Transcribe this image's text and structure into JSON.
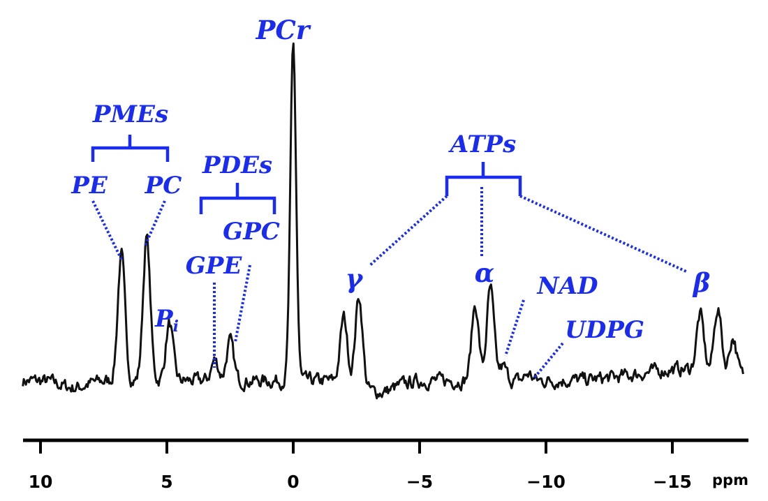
{
  "chart_data": {
    "type": "line",
    "x_unit": "ppm",
    "x_reversed": true,
    "xlim": [
      10.7,
      -17.8
    ],
    "x_ticks": [
      10,
      5,
      0,
      -5,
      -10,
      -15
    ],
    "x_tick_labels": [
      "10",
      "5",
      "0",
      "−5",
      "−10",
      "−15"
    ],
    "y_axis_shown": false,
    "grid": false,
    "baseline": 0.8,
    "noise_amplitude": 0.3,
    "peaks": [
      {
        "label": "PE",
        "ppm": 6.8,
        "height": 5.5
      },
      {
        "label": "PC",
        "ppm": 5.8,
        "height": 6.2
      },
      {
        "label": "Pi",
        "ppm": 4.9,
        "height": 2.5
      },
      {
        "label": "GPE",
        "ppm": 3.1,
        "height": 0.9
      },
      {
        "label": "GPC",
        "ppm": 2.5,
        "height": 1.7
      },
      {
        "label": "PCr",
        "ppm": 0.0,
        "height": 14.5
      },
      {
        "label": "γ",
        "ppm": -2.0,
        "height": 2.8
      },
      {
        "label": "γ",
        "ppm": -2.6,
        "height": 3.9
      },
      {
        "label": "α",
        "ppm": -7.2,
        "height": 3.3
      },
      {
        "label": "α",
        "ppm": -7.8,
        "height": 4.0
      },
      {
        "label": "NAD",
        "ppm": -8.3,
        "height": 0.6
      },
      {
        "label": "UDPG",
        "ppm": -9.3,
        "height": 0.3
      },
      {
        "label": "β",
        "ppm": -16.1,
        "height": 2.4
      },
      {
        "label": "β",
        "ppm": -16.8,
        "height": 2.8
      },
      {
        "label": "β",
        "ppm": -17.4,
        "height": 1.6
      }
    ],
    "annotations": {
      "PCr": "PCr",
      "PMEs": "PMEs",
      "PE": "PE",
      "PC": "PC",
      "Pi_main": "P",
      "Pi_sub": "i",
      "PDEs": "PDEs",
      "GPE": "GPE",
      "GPC": "GPC",
      "ATPs": "ATPs",
      "gamma": "γ",
      "alpha": "α",
      "beta": "β",
      "NAD": "NAD",
      "UDPG": "UDPG"
    },
    "colors": {
      "annotation": "#1a2cf0",
      "trace": "#111111",
      "axis": "#000000"
    }
  }
}
